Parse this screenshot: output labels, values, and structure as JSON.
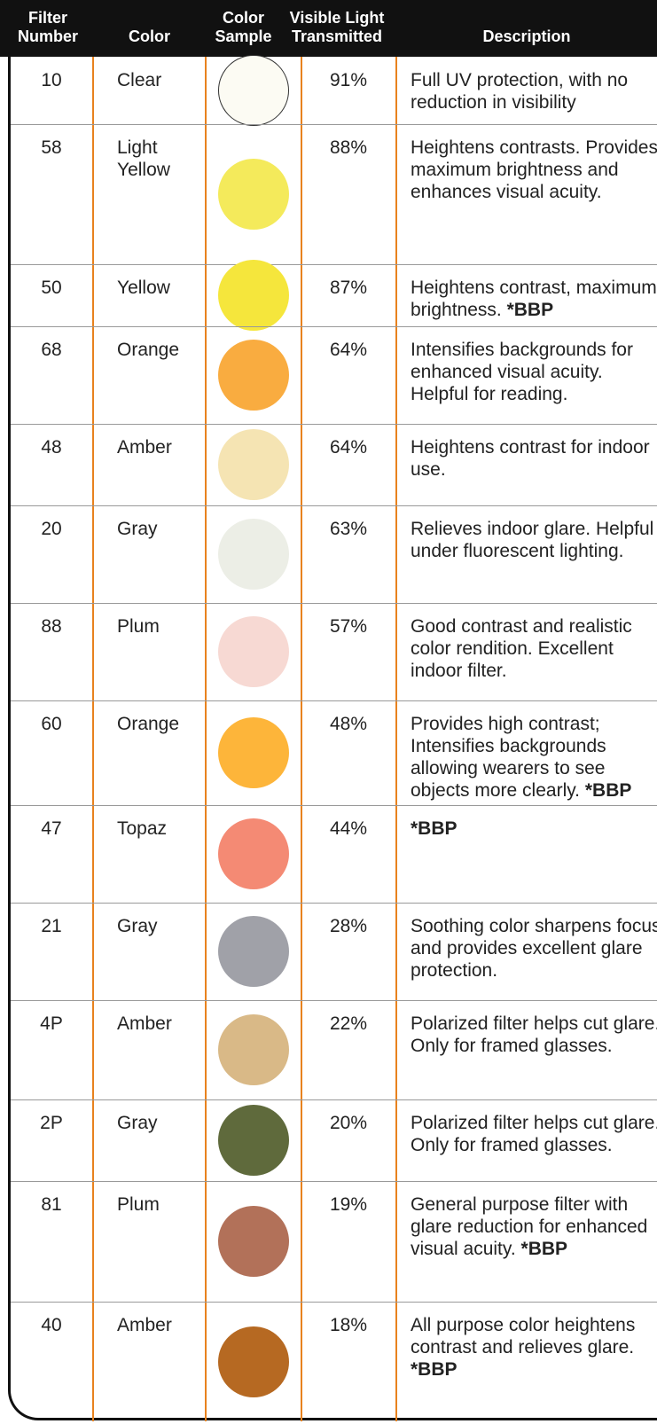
{
  "table": {
    "header": [
      "Filter Number",
      "Color",
      "Color Sample",
      "Visible Light Transmitted",
      "Description"
    ],
    "rows": [
      {
        "filter": "10",
        "color": "Clear",
        "swatch": "#fcfbf3",
        "transmitted": "91%",
        "description": "Full UV protection, with no reduction in visibility"
      },
      {
        "filter": "58",
        "color": "Light Yellow",
        "swatch": "#f4ea5b",
        "transmitted": "88%",
        "description": "Heightens contrasts. Provides maximum brightness and enhances visual acuity."
      },
      {
        "filter": "50",
        "color": "Yellow",
        "swatch": "#f5e63c",
        "transmitted": "87%",
        "description": "Heightens contrast, maximum brightness.",
        "note": "*BBP"
      },
      {
        "filter": "68",
        "color": "Orange",
        "swatch": "#f9ac40",
        "transmitted": "64%",
        "description": "Intensifies backgrounds for enhanced visual acuity. Helpful for reading."
      },
      {
        "filter": "48",
        "color": "Amber",
        "swatch": "#f5e4b3",
        "transmitted": "64%",
        "description": "Heightens contrast for indoor use."
      },
      {
        "filter": "20",
        "color": "Gray",
        "swatch": "#eceee6",
        "transmitted": "63%",
        "description": "Relieves indoor glare. Helpful under fluorescent lighting."
      },
      {
        "filter": "88",
        "color": "Plum",
        "swatch": "#f7d9d3",
        "transmitted": "57%",
        "description": "Good contrast and realistic color rendition. Excellent indoor filter."
      },
      {
        "filter": "60",
        "color": "Orange",
        "swatch": "#fdb53a",
        "transmitted": "48%",
        "description": "Provides high contrast; Intensifies backgrounds allowing wearers to see objects more clearly.",
        "note": "*BBP"
      },
      {
        "filter": "47",
        "color": "Topaz",
        "swatch": "#f48a74",
        "transmitted": "44%",
        "note": "*BBP"
      },
      {
        "filter": "21",
        "color": "Gray",
        "swatch": "#a0a1a8",
        "transmitted": "28%",
        "description": "Soothing color sharpens focus and provides excellent glare protection."
      },
      {
        "filter": "4P",
        "color": "Amber",
        "swatch": "#d9b987",
        "transmitted": "22%",
        "description": "Polarized filter helps cut glare. Only for framed glasses."
      },
      {
        "filter": "2P",
        "color": "Gray",
        "swatch": "#5f6a3c",
        "transmitted": "20%",
        "description": "Polarized filter helps cut glare. Only for framed glasses."
      },
      {
        "filter": "81",
        "color": "Plum",
        "swatch": "#b27159",
        "transmitted": "19%",
        "description": "General purpose filter with glare reduction for enhanced visual acuity.",
        "note": "*BBP"
      },
      {
        "filter": "40",
        "color": "Amber",
        "swatch": "#b66922",
        "transmitted": "18%",
        "description": "All purpose color heightens contrast and relieves glare.",
        "note": "*BBP"
      }
    ]
  }
}
